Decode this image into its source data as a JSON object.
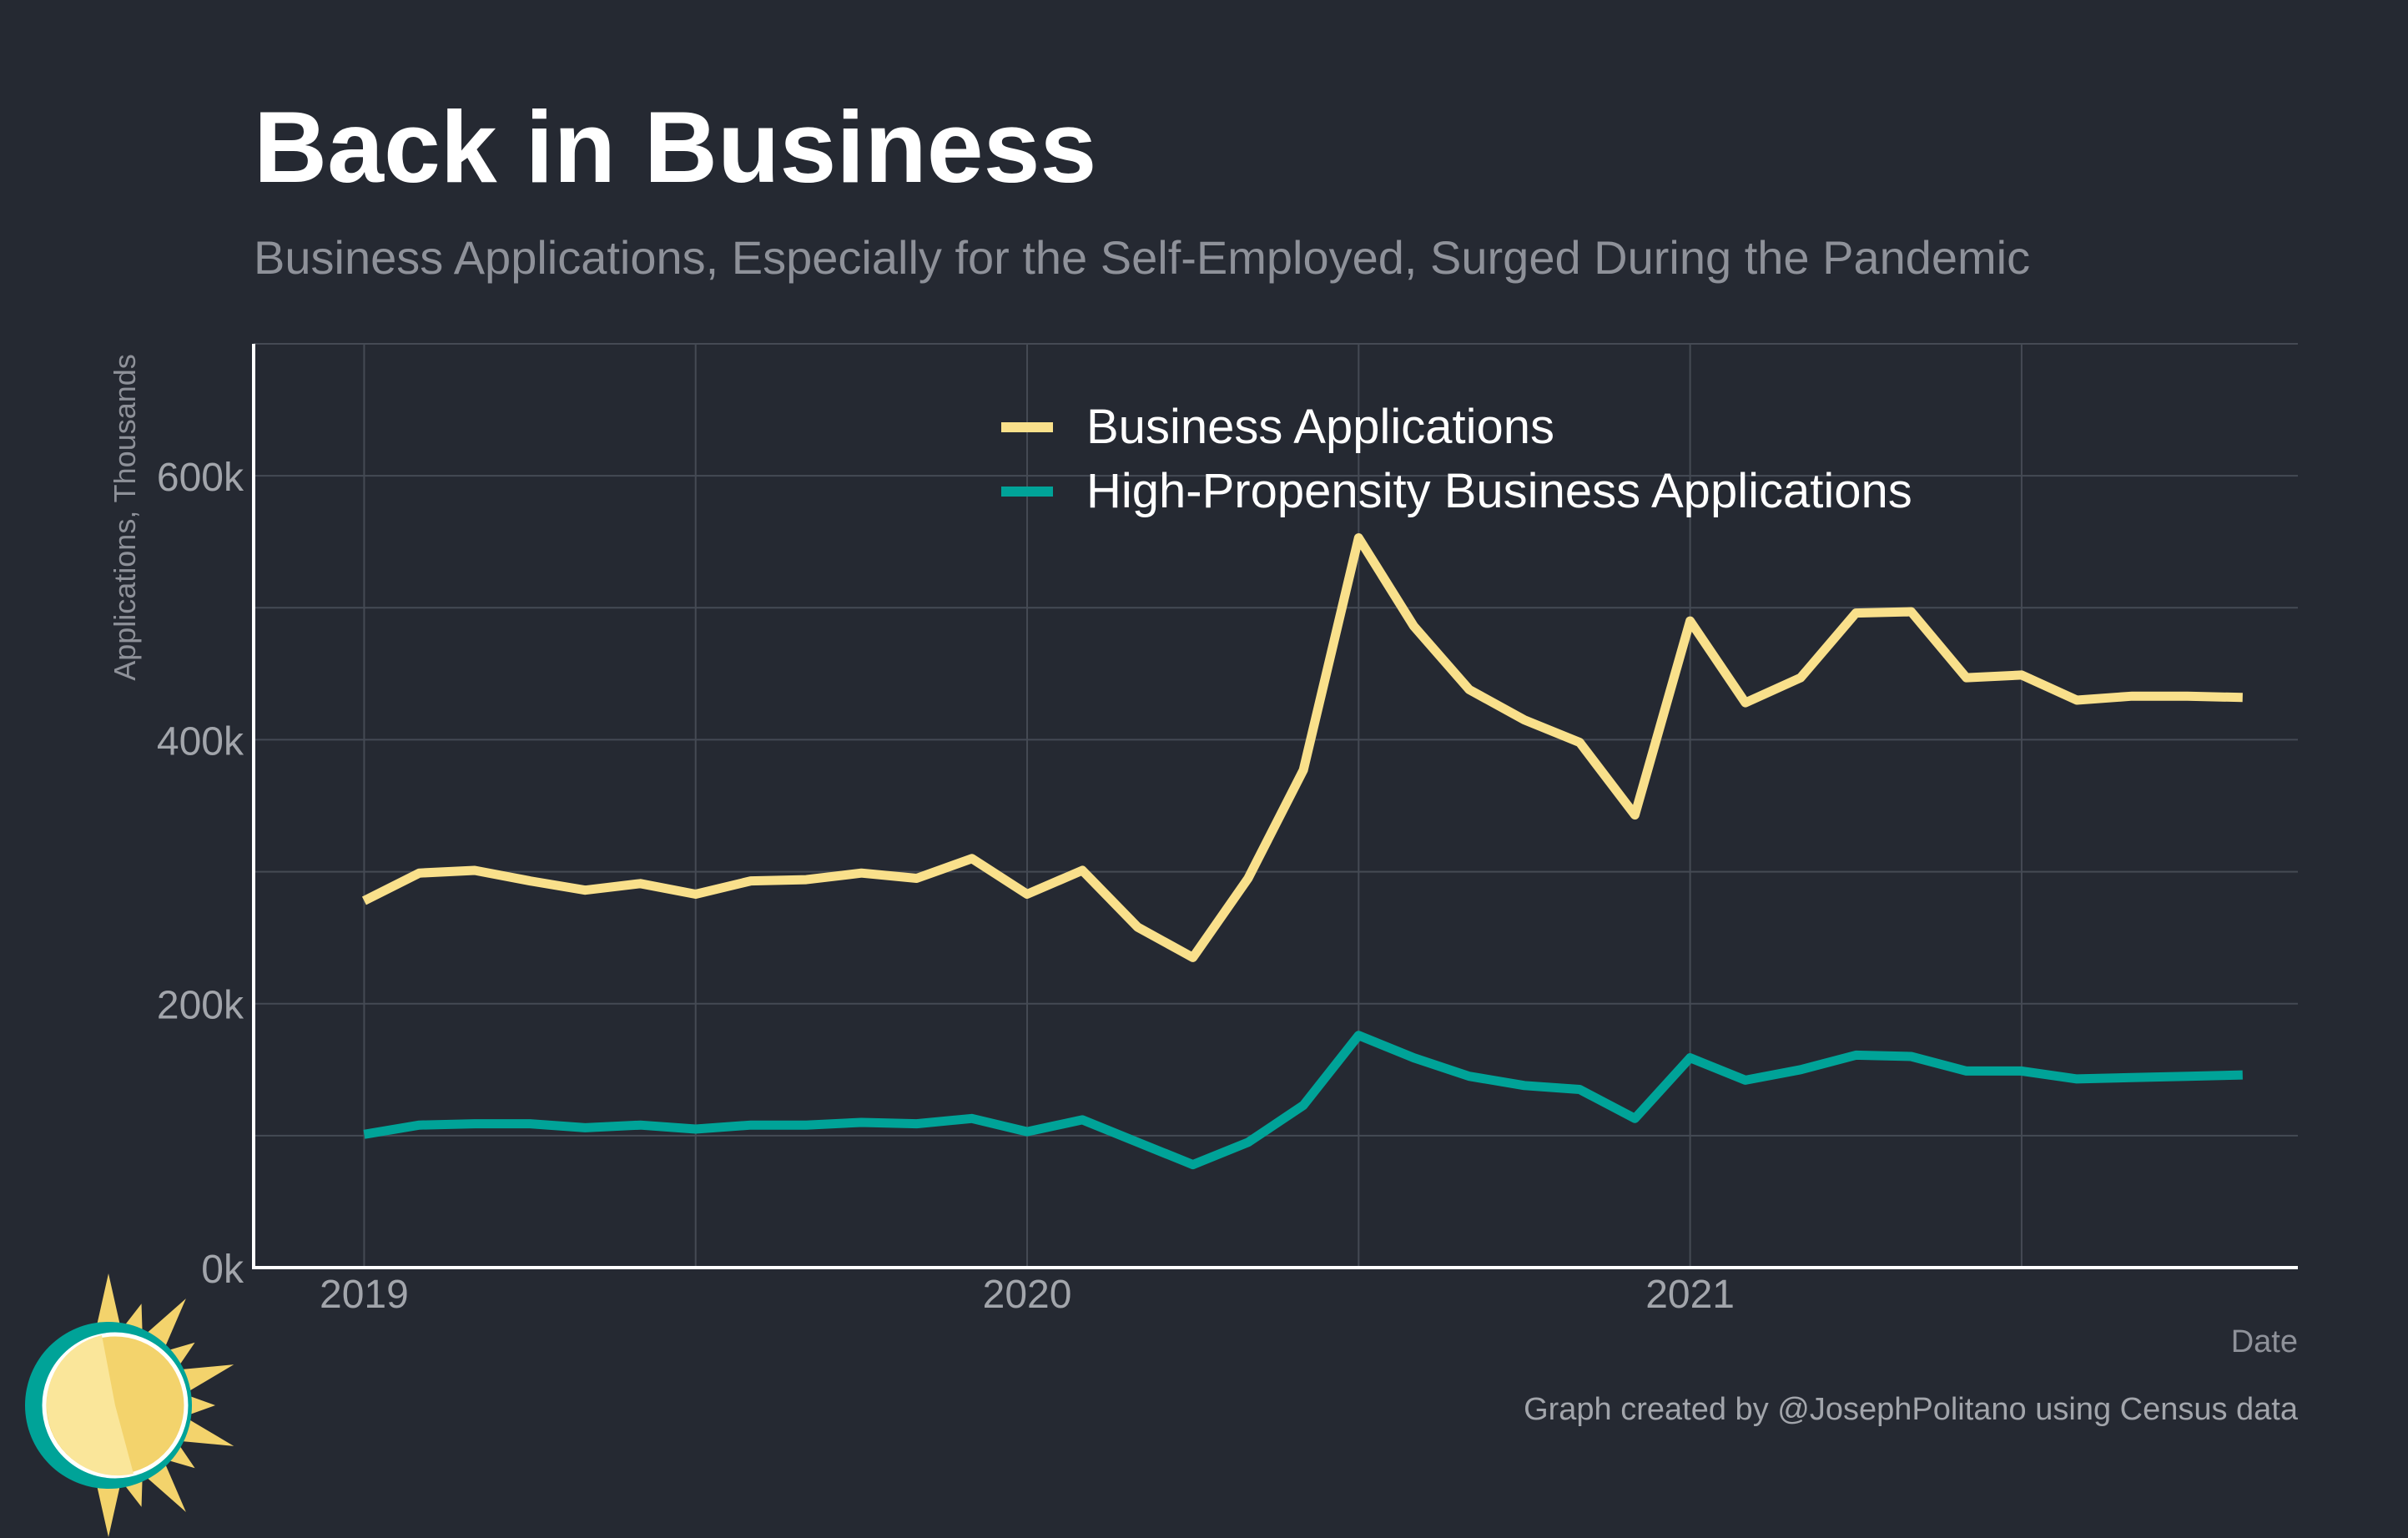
{
  "chart_data": {
    "type": "line",
    "title": "Back in Business",
    "subtitle": "Business Applications, Especially for the Self-Employed, Surged During the Pandemic",
    "xlabel": "Date",
    "ylabel": "Applications, Thousands",
    "caption": "Graph created by @JosephPolitano using Census data",
    "x_ticks": [
      "2019",
      "2020",
      "2021"
    ],
    "y_ticks": [
      "0k",
      "200k",
      "400k",
      "600k"
    ],
    "ylim": [
      0,
      700000
    ],
    "xlim": [
      "2018-11",
      "2021-12"
    ],
    "grid": true,
    "legend_position": "top-center",
    "x": [
      "2019-01",
      "2019-02",
      "2019-03",
      "2019-04",
      "2019-05",
      "2019-06",
      "2019-07",
      "2019-08",
      "2019-09",
      "2019-10",
      "2019-11",
      "2019-12",
      "2020-01",
      "2020-02",
      "2020-03",
      "2020-04",
      "2020-05",
      "2020-06",
      "2020-07",
      "2020-08",
      "2020-09",
      "2020-10",
      "2020-11",
      "2020-12",
      "2021-01",
      "2021-02",
      "2021-03",
      "2021-04",
      "2021-05",
      "2021-06",
      "2021-07",
      "2021-08",
      "2021-09",
      "2021-10",
      "2021-11"
    ],
    "series": [
      {
        "name": "Business Applications",
        "color": "#f9e08b",
        "values": [
          278000,
          299000,
          301000,
          293000,
          286000,
          291000,
          283000,
          293000,
          294000,
          299000,
          295000,
          310000,
          283000,
          301000,
          258000,
          235000,
          295000,
          377000,
          553000,
          486000,
          438000,
          415000,
          398000,
          343000,
          490000,
          428000,
          447000,
          496000,
          497000,
          447000,
          449000,
          430000,
          433000,
          433000,
          432000
        ]
      },
      {
        "name": "High-Propensity Business Applications",
        "color": "#00a398",
        "values": [
          101000,
          108000,
          109000,
          109000,
          106000,
          108000,
          105000,
          108000,
          108000,
          110000,
          109000,
          113000,
          103000,
          112000,
          95000,
          78000,
          95000,
          123000,
          176000,
          159000,
          145000,
          138000,
          135000,
          113000,
          159000,
          142000,
          150000,
          161000,
          160000,
          149000,
          149000,
          143000,
          144000,
          145000,
          146000
        ]
      }
    ]
  },
  "colors": {
    "background": "#252932",
    "grid": "#454a54",
    "axis": "#ffffff",
    "logo_sun": "#f3d36c",
    "logo_ring": "#00a398"
  },
  "logo": {
    "icon": "sun-logo-icon"
  }
}
